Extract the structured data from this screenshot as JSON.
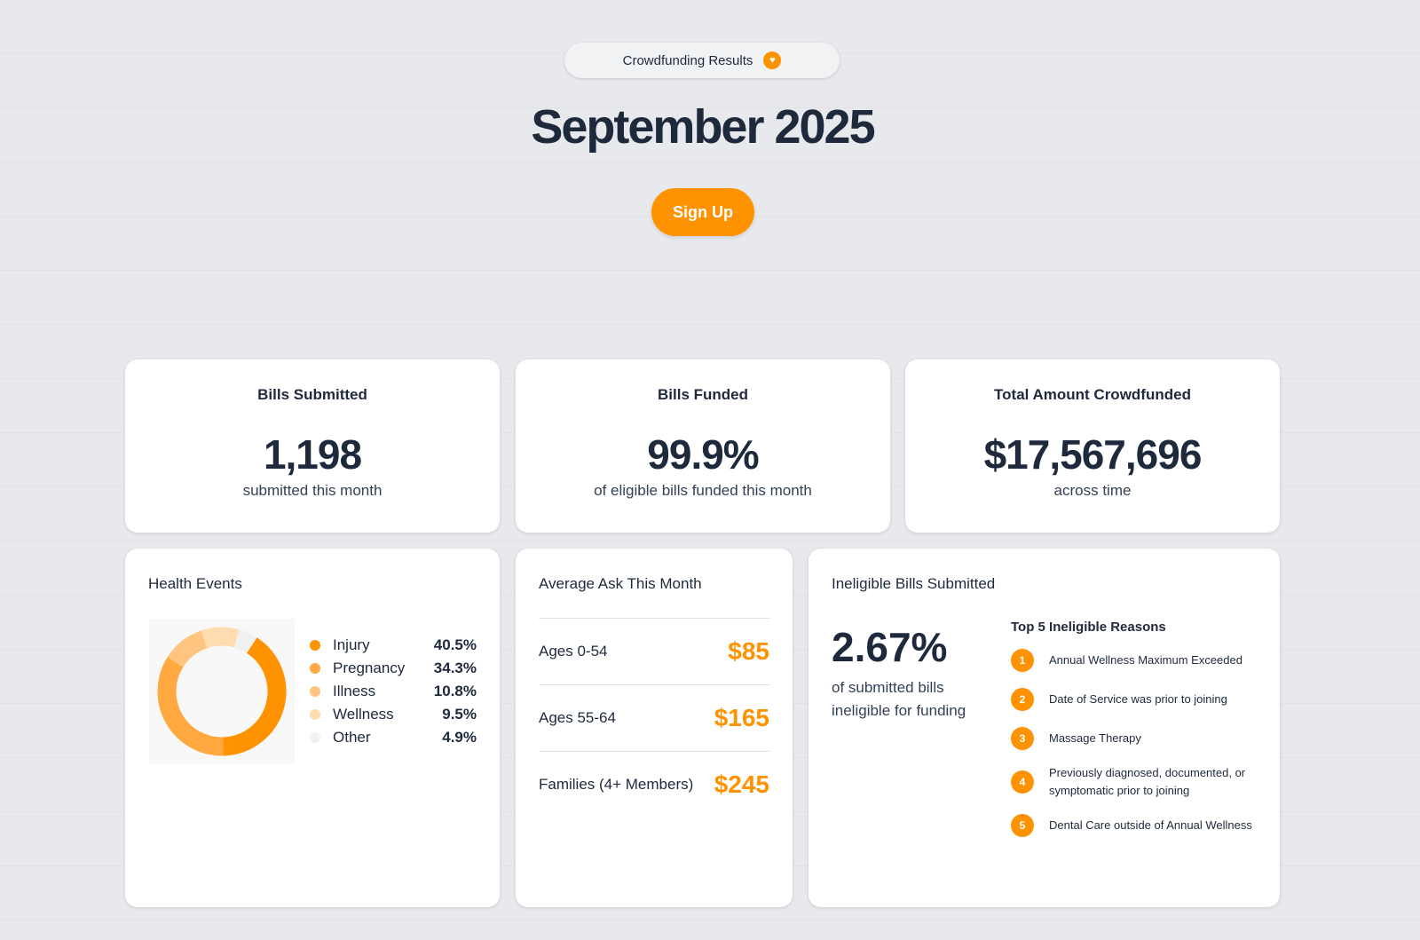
{
  "header": {
    "badge_label": "Crowdfunding Results",
    "badge_icon": "heart-icon",
    "title": "September 2025",
    "signup_label": "Sign Up"
  },
  "colors": {
    "accent": "#ff9200"
  },
  "stats": [
    {
      "title": "Bills Submitted",
      "value": "1,198",
      "subtitle": "submitted this month"
    },
    {
      "title": "Bills Funded",
      "value": "99.9%",
      "subtitle": "of eligible bills funded this month"
    },
    {
      "title": "Total Amount Crowdfunded",
      "value": "$17,567,696",
      "subtitle": "across time"
    }
  ],
  "health_events": {
    "title": "Health Events",
    "chart_data": {
      "type": "pie",
      "categories": [
        "Injury",
        "Pregnancy",
        "Illness",
        "Wellness",
        "Other"
      ],
      "values": [
        40.5,
        34.3,
        10.8,
        9.5,
        4.9
      ],
      "labels": [
        "40.5%",
        "34.3%",
        "10.8%",
        "9.5%",
        "4.9%"
      ],
      "colors": [
        "#ff9200",
        "#ffa940",
        "#ffc580",
        "#ffdcb0",
        "#f1f1f1"
      ],
      "legend": "right"
    }
  },
  "average_ask": {
    "title": "Average Ask This Month",
    "rows": [
      {
        "label": "Ages 0-54",
        "amount": "$85"
      },
      {
        "label": "Ages 55-64",
        "amount": "$165"
      },
      {
        "label": "Families (4+ Members)",
        "amount": "$245"
      }
    ]
  },
  "ineligible": {
    "title": "Ineligible Bills Submitted",
    "value": "2.67%",
    "subtitle": "of submitted bills ineligible for funding",
    "reasons_title": "Top 5 Ineligible Reasons",
    "reasons": [
      {
        "n": "1",
        "text": "Annual Wellness Maximum Exceeded"
      },
      {
        "n": "2",
        "text": "Date of Service was prior to joining"
      },
      {
        "n": "3",
        "text": "Massage Therapy"
      },
      {
        "n": "4",
        "text": "Previously diagnosed, documented, or symptomatic prior to joining"
      },
      {
        "n": "5",
        "text": "Dental Care outside of Annual Wellness"
      }
    ]
  }
}
